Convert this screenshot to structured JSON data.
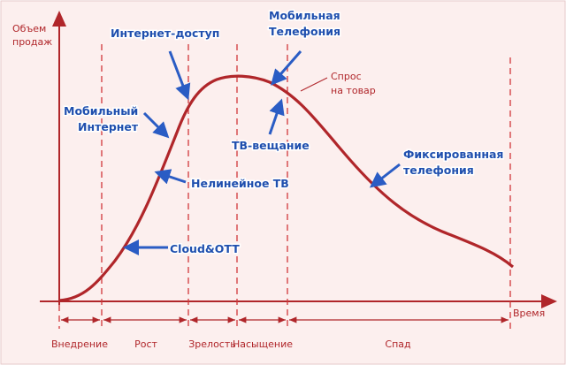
{
  "axes": {
    "y_label": [
      "Объем",
      "продаж"
    ],
    "x_label": "Время"
  },
  "curve_label": [
    "Спрос",
    "на товар"
  ],
  "phases": [
    "Внедрение",
    "Рост",
    "Зрелость",
    "Насыщение",
    "Спад"
  ],
  "services": [
    [
      "Интернет-доступ"
    ],
    [
      "Мобильная",
      "Телефония"
    ],
    [
      "Мобильный",
      "Интернет"
    ],
    [
      "ТВ-вещание"
    ],
    [
      "Нелинейное ТВ"
    ],
    [
      "Cloud&OTT"
    ],
    [
      "Фиксированная",
      "телефония"
    ]
  ]
}
